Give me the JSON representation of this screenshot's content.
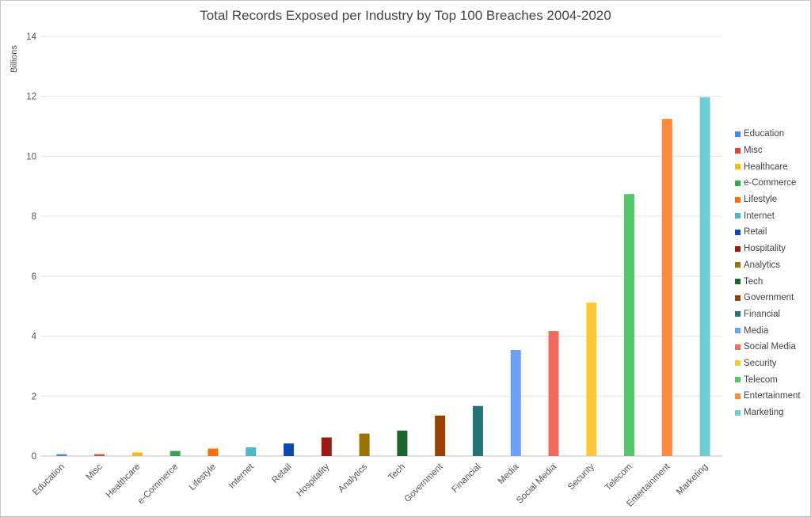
{
  "chart_data": {
    "type": "bar",
    "title": "Total Records Exposed per Industry by Top 100 Breaches 2004-2020",
    "xlabel": "",
    "ylabel": "Billions",
    "ylim": [
      0,
      14
    ],
    "yticks": [
      0,
      2,
      4,
      6,
      8,
      10,
      12,
      14
    ],
    "grid": true,
    "legend_position": "right",
    "categories": [
      "Education",
      "Misc",
      "Healthcare",
      "e-Commerce",
      "Lifestyle",
      "Internet",
      "Retail",
      "Hospitality",
      "Analytics",
      "Tech",
      "Government",
      "Financial",
      "Media",
      "Social Media",
      "Security",
      "Telecom",
      "Entertainment",
      "Marketing"
    ],
    "values": [
      0.06,
      0.06,
      0.12,
      0.17,
      0.25,
      0.29,
      0.42,
      0.62,
      0.75,
      0.85,
      1.35,
      1.67,
      3.54,
      4.17,
      5.12,
      8.74,
      11.25,
      11.97
    ],
    "colors": [
      "#4285f4",
      "#ea4335",
      "#fbbc04",
      "#34a853",
      "#ff6d01",
      "#46bdc6",
      "#0b48b0",
      "#9c1a12",
      "#9a7200",
      "#1e6430",
      "#9c3f02",
      "#237378",
      "#6ea0f7",
      "#ef6b60",
      "#fcc934",
      "#52c66d",
      "#ff8a3d",
      "#6dcdd4"
    ]
  }
}
